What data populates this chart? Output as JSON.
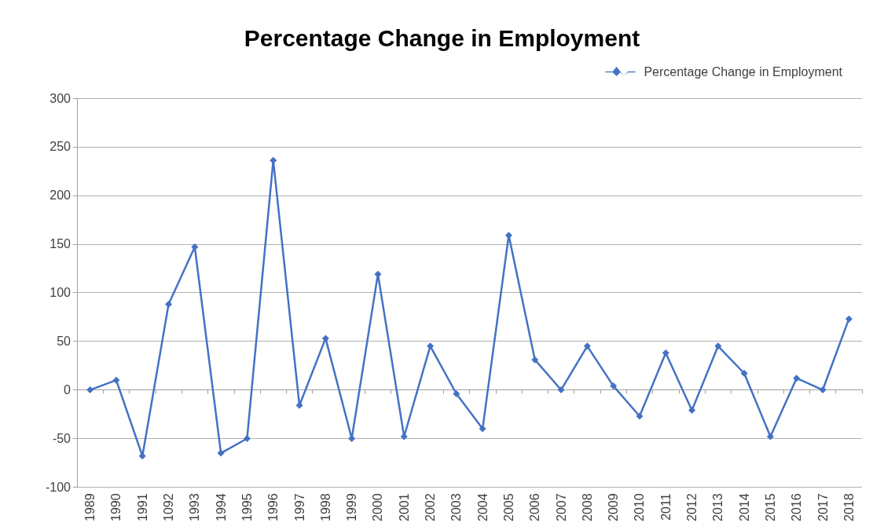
{
  "chart_data": {
    "type": "line",
    "title": "Percentage Change in Employment",
    "categories": [
      "1989",
      "1990",
      "1991",
      "1092",
      "1993",
      "1994",
      "1995",
      "1996",
      "1997",
      "1998",
      "1999",
      "2000",
      "2001",
      "2002",
      "2003",
      "2004",
      "2005",
      "2006",
      "2007",
      "2008",
      "2009",
      "2010",
      "2011",
      "2012",
      "2013",
      "2014",
      "2015",
      "2016",
      "2017",
      "2018"
    ],
    "series": [
      {
        "name": "Percentage Change in Employment",
        "color": "#4472c4",
        "values": [
          0,
          10,
          -68,
          88,
          147,
          -65,
          -50,
          236,
          -16,
          53,
          -50,
          119,
          -48,
          45,
          -4,
          -40,
          159,
          31,
          0,
          45,
          4,
          -27,
          38,
          -21,
          45,
          17,
          -48,
          12,
          0,
          73
        ]
      }
    ],
    "ylim": [
      -100,
      300
    ],
    "yticks": [
      -100,
      -50,
      0,
      50,
      100,
      150,
      200,
      250,
      300
    ],
    "grid": "y",
    "legend": "top right",
    "marker": "diamond",
    "line_style": "solid"
  }
}
